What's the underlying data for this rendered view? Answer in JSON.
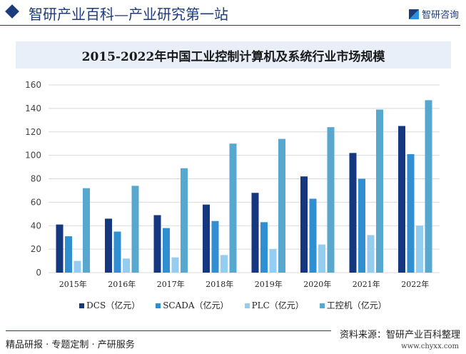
{
  "header": {
    "title": "智研产业百科—产业研究第一站",
    "logo_text": "智研咨询"
  },
  "footer": {
    "slogan": "精品研报 · 专题定制 · 产研服务",
    "source": "资料来源：智研产业百科整理",
    "url": "www.chyxx.com"
  },
  "chart_data": {
    "type": "bar",
    "title": "2015-2022年中国工业控制计算机及系统行业市场规模",
    "categories": [
      "2015年",
      "2016年",
      "2017年",
      "2018年",
      "2019年",
      "2020年",
      "2021年",
      "2022年"
    ],
    "series": [
      {
        "name": "DCS（亿元）",
        "color": "#14377f",
        "values": [
          41,
          46,
          49,
          58,
          68,
          82,
          102,
          125
        ]
      },
      {
        "name": "SCADA（亿元）",
        "color": "#2f8fd0",
        "values": [
          31,
          35,
          38,
          44,
          43,
          63,
          80,
          101
        ]
      },
      {
        "name": "PLC（亿元）",
        "color": "#94cdf0",
        "values": [
          10,
          12,
          13,
          15,
          20,
          24,
          32,
          40
        ]
      },
      {
        "name": "工控机（亿元）",
        "color": "#57a7cf",
        "values": [
          72,
          74,
          89,
          110,
          114,
          124,
          139,
          147
        ]
      }
    ],
    "ylim": [
      0,
      160
    ],
    "yticks": [
      0,
      20,
      40,
      60,
      80,
      100,
      120,
      140,
      160
    ],
    "grid": true,
    "legend": "bottom"
  }
}
